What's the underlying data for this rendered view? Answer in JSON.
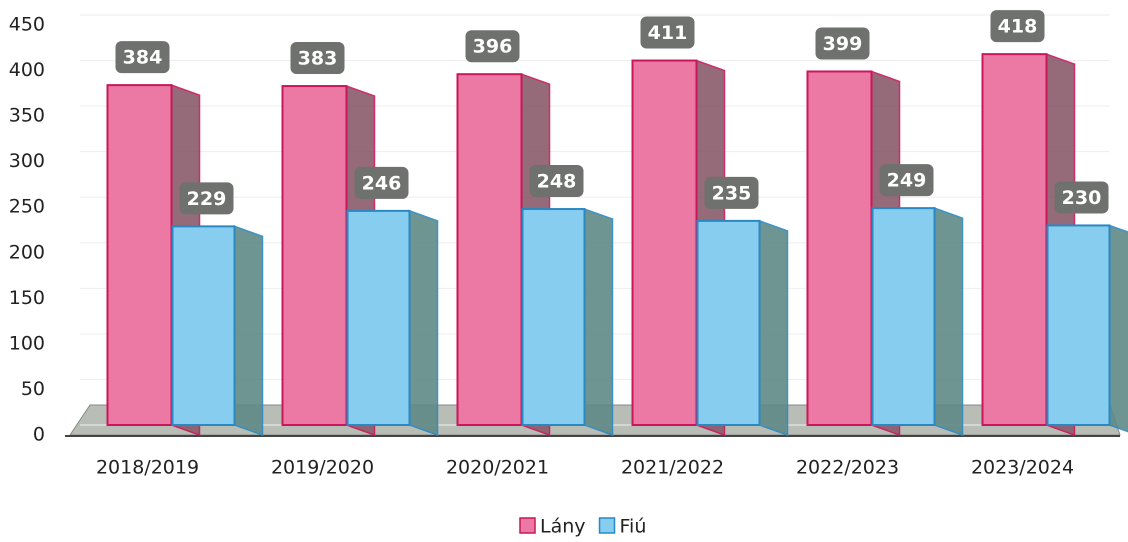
{
  "chart_data": {
    "type": "bar3d",
    "categories": [
      "2018/2019",
      "2019/2020",
      "2020/2021",
      "2021/2022",
      "2022/2023",
      "2023/2024"
    ],
    "series": [
      {
        "name": "Lány",
        "color": "#ec79a3",
        "values": [
          384,
          383,
          396,
          411,
          399,
          418
        ]
      },
      {
        "name": "Fiú",
        "color": "#86cdf0",
        "values": [
          229,
          246,
          248,
          235,
          249,
          230
        ]
      }
    ],
    "ylim": [
      0,
      450
    ],
    "yticks": [
      0,
      50,
      100,
      150,
      200,
      250,
      300,
      350,
      400,
      450
    ],
    "grid": true,
    "legend": "bottom"
  }
}
